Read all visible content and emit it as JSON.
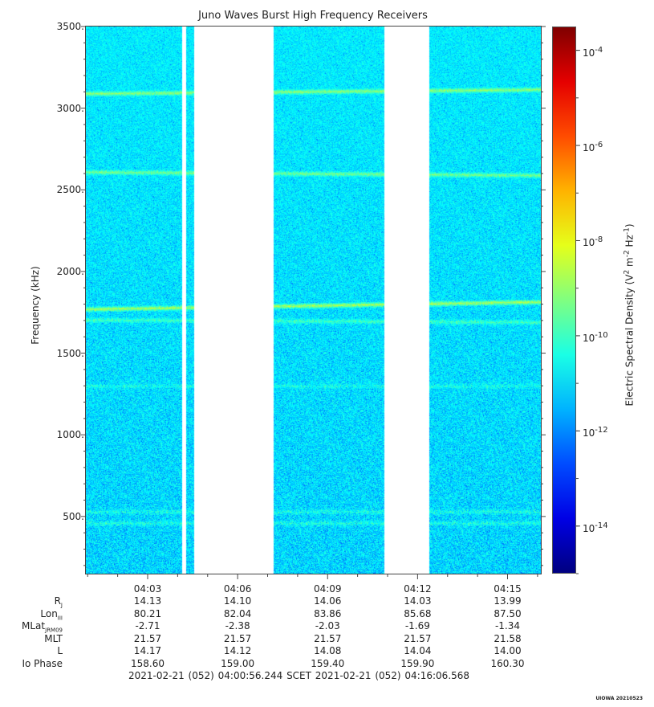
{
  "chart_data": {
    "type": "heatmap",
    "title": "Juno Waves Burst High Frequency Receivers",
    "ylabel": "Frequency (kHz)",
    "ylim": [
      150,
      3500
    ],
    "y_ticks": [
      {
        "value": 3500,
        "label": "3500."
      },
      {
        "value": 3000,
        "label": "3000."
      },
      {
        "value": 2500,
        "label": "2500."
      },
      {
        "value": 2000,
        "label": "2000."
      },
      {
        "value": 1500,
        "label": "1500."
      },
      {
        "value": 1000,
        "label": "1000."
      },
      {
        "value": 500,
        "label": "500."
      }
    ],
    "x_range_minutes": [
      0.94,
      16.11
    ],
    "x_ticks": [
      {
        "minute": 3,
        "label": "04:03"
      },
      {
        "minute": 6,
        "label": "04:06"
      },
      {
        "minute": 9,
        "label": "04:09"
      },
      {
        "minute": 12,
        "label": "04:12"
      },
      {
        "minute": 15,
        "label": "04:15"
      }
    ],
    "data_gaps_minutes": [
      [
        4.15,
        4.28
      ],
      [
        4.53,
        7.2
      ],
      [
        10.87,
        12.38
      ]
    ],
    "emission_bands": [
      {
        "freq": [
          3090,
          3115
        ],
        "intensity": 0.8
      },
      {
        "freq": [
          2610,
          2590
        ],
        "intensity": 0.7
      },
      {
        "freq": [
          1770,
          1815
        ],
        "intensity": 1.0
      },
      {
        "freq": [
          1705,
          1690
        ],
        "intensity": 0.45
      },
      {
        "freq": [
          1300,
          1300
        ],
        "intensity": 0.25
      },
      {
        "freq": [
          530,
          530
        ],
        "intensity": 0.3
      },
      {
        "freq": [
          460,
          460
        ],
        "intensity": 0.3
      }
    ],
    "background_level": "10^-12",
    "colorbar": {
      "label_html": "Electric Spectral Density (V<sup>2</sup> m<sup>-2</sup> Hz<sup>-1</sup>)",
      "log_range": [
        -15,
        -3.5
      ],
      "ticks": [
        {
          "exp": -4,
          "base": "10",
          "sup": "-4"
        },
        {
          "exp": -6,
          "base": "10",
          "sup": "-6"
        },
        {
          "exp": -8,
          "base": "10",
          "sup": "-8"
        },
        {
          "exp": -10,
          "base": "10",
          "sup": "-10"
        },
        {
          "exp": -12,
          "base": "10",
          "sup": "-12"
        },
        {
          "exp": -14,
          "base": "10",
          "sup": "-14"
        }
      ]
    }
  },
  "ephemeris": {
    "rows": [
      {
        "label_html": "R<sub>J</sub>",
        "values": [
          "14.13",
          "14.10",
          "14.06",
          "14.03",
          "13.99"
        ]
      },
      {
        "label_html": "Lon<sub>III</sub>",
        "values": [
          "80.21",
          "82.04",
          "83.86",
          "85.68",
          "87.50"
        ]
      },
      {
        "label_html": "MLat<sub>JRM09</sub>",
        "values": [
          "-2.71",
          "-2.38",
          "-2.03",
          "-1.69",
          "-1.34"
        ]
      },
      {
        "label_html": "MLT",
        "values": [
          "21.57",
          "21.57",
          "21.57",
          "21.57",
          "21.58"
        ]
      },
      {
        "label_html": "L",
        "values": [
          "14.17",
          "14.12",
          "14.08",
          "14.04",
          "14.00"
        ]
      },
      {
        "label_html": "Io Phase",
        "values": [
          "158.60",
          "159.00",
          "159.40",
          "159.90",
          "160.30"
        ]
      }
    ]
  },
  "time_range": "2021-02-21 (052) 04:00:56.244    SCET    2021-02-21 (052) 04:16:06.568",
  "credit": "UIOWA 20210523"
}
